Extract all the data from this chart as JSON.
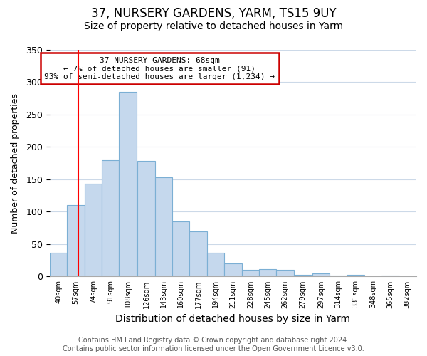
{
  "title": "37, NURSERY GARDENS, YARM, TS15 9UY",
  "subtitle": "Size of property relative to detached houses in Yarm",
  "xlabel": "Distribution of detached houses by size in Yarm",
  "ylabel": "Number of detached properties",
  "bar_labels": [
    "40sqm",
    "57sqm",
    "74sqm",
    "91sqm",
    "108sqm",
    "126sqm",
    "143sqm",
    "160sqm",
    "177sqm",
    "194sqm",
    "211sqm",
    "228sqm",
    "245sqm",
    "262sqm",
    "279sqm",
    "297sqm",
    "314sqm",
    "331sqm",
    "348sqm",
    "365sqm"
  ],
  "all_tick_labels": [
    "40sqm",
    "57sqm",
    "74sqm",
    "91sqm",
    "108sqm",
    "126sqm",
    "143sqm",
    "160sqm",
    "177sqm",
    "194sqm",
    "211sqm",
    "228sqm",
    "245sqm",
    "262sqm",
    "279sqm",
    "297sqm",
    "314sqm",
    "331sqm",
    "348sqm",
    "365sqm",
    "382sqm"
  ],
  "bar_values": [
    37,
    110,
    143,
    180,
    285,
    178,
    153,
    85,
    70,
    37,
    20,
    10,
    11,
    10,
    3,
    5,
    2,
    3,
    1,
    2
  ],
  "bar_color": "#c5d8ed",
  "bar_edge_color": "#7bafd4",
  "ylim": [
    0,
    350
  ],
  "yticks": [
    0,
    50,
    100,
    150,
    200,
    250,
    300,
    350
  ],
  "red_line_x": 68,
  "annotation_title": "37 NURSERY GARDENS: 68sqm",
  "annotation_line1": "← 7% of detached houses are smaller (91)",
  "annotation_line2": "93% of semi-detached houses are larger (1,234) →",
  "annotation_box_color": "#ffffff",
  "annotation_box_edge": "#cc0000",
  "footer_line1": "Contains HM Land Registry data © Crown copyright and database right 2024.",
  "footer_line2": "Contains public sector information licensed under the Open Government Licence v3.0.",
  "grid_color": "#ccd9e8",
  "title_fontsize": 12,
  "subtitle_fontsize": 10,
  "xlabel_fontsize": 10,
  "ylabel_fontsize": 9,
  "footer_fontsize": 7,
  "bin_width": 17
}
